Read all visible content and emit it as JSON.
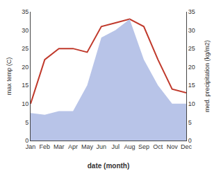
{
  "chart_data": {
    "type": "line",
    "categories": [
      "Jan",
      "Feb",
      "Mar",
      "Apr",
      "May",
      "Jun",
      "Jul",
      "Aug",
      "Sep",
      "Oct",
      "Nov",
      "Dec"
    ],
    "series": [
      {
        "type": "area",
        "axis": "y2",
        "color": "#b8c4e8",
        "values": [
          7.5,
          7,
          8,
          8,
          15,
          28,
          30,
          33,
          22,
          15,
          10,
          10
        ]
      },
      {
        "type": "line",
        "color": "#c0392b",
        "values": [
          10,
          22,
          25,
          25,
          24,
          31,
          32,
          33,
          31,
          22,
          14,
          13
        ]
      }
    ],
    "xlabel": "date (month)",
    "ylabel": "max temp (C)",
    "y2label": "med. precipitation (kg/m2)",
    "ylim": [
      0,
      35
    ],
    "yticks": [
      0,
      5,
      10,
      15,
      20,
      25,
      30,
      35
    ],
    "y2lim": [
      0,
      35
    ],
    "y2ticks": [
      0,
      5,
      10,
      15,
      20,
      25,
      30,
      35
    ],
    "grid": false
  }
}
